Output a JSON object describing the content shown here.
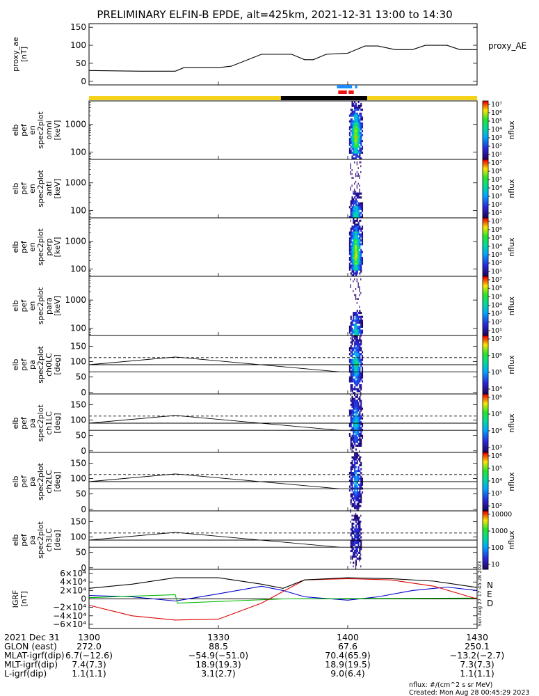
{
  "title": "PRELIMINARY ELFIN-B EPDE, alt=425km, 2021-12-31 13:00 to 14:30",
  "chart_data": {
    "type": "line",
    "time_range": [
      "2021-12-31 13:00",
      "2021-12-31 14:30"
    ],
    "x_ticks": [
      "1300",
      "1330",
      "1400",
      "1430"
    ],
    "panels": [
      {
        "id": "proxy_ae",
        "ylabel": [
          "proxy_ae",
          "[nT]"
        ],
        "legend": "proxy_AE",
        "ylim": [
          -10,
          160
        ],
        "yticks": [
          "0",
          "50",
          "100",
          "150"
        ],
        "series": [
          {
            "name": "proxy_AE",
            "x": [
              0,
              12,
              20,
              22,
              30,
              33,
              40,
              47,
              50,
              52,
              55,
              60,
              64,
              67,
              71,
              75,
              78,
              81,
              83,
              86,
              90
            ],
            "y": [
              30,
              28,
              28,
              38,
              38,
              42,
              75,
              75,
              60,
              60,
              75,
              78,
              98,
              98,
              88,
              88,
              100,
              100,
              100,
              88,
              88
            ]
          }
        ]
      },
      {
        "id": "omni",
        "ylabel": [
          "elb",
          "pef",
          "en",
          "spec2plot",
          "omni",
          "[keV]"
        ],
        "log": true,
        "ylim": [
          55,
          7000
        ],
        "yticks": [
          "100",
          "1000"
        ],
        "cbar": [
          "10⁷",
          "10⁶",
          "10⁵",
          "10⁴",
          "10³",
          "10²",
          "10¹"
        ],
        "cbar_label": "nflux",
        "intensity": [
          0.25,
          0.55,
          0.75,
          0.85,
          0.8,
          0.7,
          0.5,
          0.3,
          0.15
        ]
      },
      {
        "id": "anti",
        "ylabel": [
          "elb",
          "pef",
          "en",
          "spec2plot",
          "anti",
          "[keV]"
        ],
        "log": true,
        "ylim": [
          55,
          7000
        ],
        "yticks": [
          "100",
          "1000"
        ],
        "cbar": [
          "10⁷",
          "10⁶",
          "10⁵",
          "10⁴",
          "10³",
          "10²",
          "10¹"
        ],
        "cbar_label": "nflux",
        "intensity": [
          0.6,
          0.5,
          0.3,
          0.15,
          0.05,
          0.02,
          0.01,
          0.0,
          0.0
        ]
      },
      {
        "id": "perp",
        "ylabel": [
          "elb",
          "pef",
          "en",
          "spec2plot",
          "perp",
          "[keV]"
        ],
        "log": true,
        "ylim": [
          55,
          7000
        ],
        "yticks": [
          "100",
          "1000"
        ],
        "cbar": [
          "10⁷",
          "10⁶",
          "10⁵",
          "10⁴",
          "10³",
          "10²",
          "10¹"
        ],
        "cbar_label": "nflux",
        "intensity": [
          0.2,
          0.55,
          0.75,
          0.85,
          0.8,
          0.7,
          0.5,
          0.3,
          0.1
        ]
      },
      {
        "id": "para",
        "ylabel": [
          "elb",
          "pef",
          "en",
          "spec2plot",
          "para",
          "[keV]"
        ],
        "log": true,
        "ylim": [
          55,
          7000
        ],
        "yticks": [
          "100",
          "1000"
        ],
        "cbar": [
          "10⁷",
          "10⁶",
          "10⁵",
          "10⁴",
          "10³",
          "10²",
          "10¹"
        ],
        "cbar_label": "nflux",
        "intensity": [
          0.55,
          0.45,
          0.3,
          0.15,
          0.05,
          0.02,
          0.0,
          0.0,
          0.0
        ]
      },
      {
        "id": "ch0LC",
        "ylabel": [
          "elb",
          "pef",
          "pa",
          "spec2plot",
          "ch0LC",
          "[deg]"
        ],
        "ylim": [
          -5,
          185
        ],
        "yticks": [
          "0",
          "50",
          "100",
          "150"
        ],
        "cbar": [
          "10⁷",
          "10⁶",
          "10⁵",
          "10⁴"
        ],
        "cbar_label": "nflux",
        "intensity": 0.65
      },
      {
        "id": "ch1LC",
        "ylabel": [
          "elb",
          "pef",
          "pa",
          "spec2plot",
          "ch1LC",
          "[deg]"
        ],
        "ylim": [
          -5,
          185
        ],
        "yticks": [
          "0",
          "50",
          "100",
          "150"
        ],
        "cbar": [
          "10⁶",
          "10⁵",
          "10⁴",
          "10³"
        ],
        "cbar_label": "nflux",
        "intensity": 0.55
      },
      {
        "id": "ch2LC",
        "ylabel": [
          "elb",
          "pef",
          "pa",
          "spec2plot",
          "ch2LC",
          "[deg]"
        ],
        "ylim": [
          -5,
          185
        ],
        "yticks": [
          "0",
          "50",
          "100",
          "150"
        ],
        "cbar": [
          "10⁶",
          "10⁵",
          "10⁴",
          "10³",
          "10²"
        ],
        "cbar_label": "nflux",
        "intensity": 0.45
      },
      {
        "id": "ch3LC",
        "ylabel": [
          "elb",
          "pef",
          "pa",
          "spec2plot",
          "ch3LC",
          "[deg]"
        ],
        "ylim": [
          -5,
          185
        ],
        "yticks": [
          "0",
          "50",
          "100",
          "150"
        ],
        "cbar": [
          "10000",
          "1000",
          "100",
          "10"
        ],
        "cbar_label": "nflux",
        "intensity": 0.25
      },
      {
        "id": "igrf",
        "ylabel": [
          "IGRF",
          "[nT]"
        ],
        "ylim": [
          -70000,
          70000
        ],
        "yticks": [
          "6×10⁴",
          "4×10⁴",
          "2×10⁴",
          "0",
          "−2×10⁴",
          "−4×10⁴",
          "−6×10⁴"
        ],
        "legend": [
          "N",
          "E",
          "D"
        ],
        "series": [
          {
            "name": "N",
            "color": "#0000cc",
            "x": [
              0,
              10,
              20,
              30,
              40,
              45,
              50,
              60,
              67,
              75,
              83,
              90
            ],
            "y": [
              8000,
              5000,
              -5000,
              12000,
              30000,
              20000,
              5000,
              -3000,
              5000,
              20000,
              28000,
              20000
            ]
          },
          {
            "name": "E",
            "color": "#00bb00",
            "x": [
              0,
              20,
              20.5,
              45,
              67,
              90
            ],
            "y": [
              3000,
              10000,
              -10000,
              0,
              1000,
              2000
            ]
          },
          {
            "name": "D",
            "color": "#dd0000",
            "x": [
              0,
              10,
              20,
              30,
              40,
              50,
              60,
              70,
              80,
              90
            ],
            "y": [
              -15000,
              -40000,
              -50000,
              -48000,
              -10000,
              45000,
              48000,
              45000,
              30000,
              0
            ]
          },
          {
            "name": "",
            "color": "#000000",
            "x": [
              0,
              10,
              20,
              30,
              40,
              45,
              50,
              60,
              70,
              80,
              90
            ],
            "y": [
              25000,
              35000,
              50000,
              50000,
              35000,
              25000,
              45000,
              50000,
              48000,
              42000,
              27000
            ]
          }
        ]
      }
    ],
    "pa_lines": {
      "dashed": {
        "x": [
          0,
          90
        ],
        "y": [
          113,
          113
        ]
      },
      "upper": {
        "x": [
          0,
          20,
          58
        ],
        "y": [
          90,
          115,
          67
        ]
      },
      "flat": {
        "x": [
          0,
          90
        ],
        "y": [
          90,
          90
        ]
      },
      "lower": {
        "x": [
          0,
          90
        ],
        "y": [
          67,
          67
        ]
      }
    },
    "coverage": {
      "x_range": [
        45,
        65
      ],
      "black_bar": [
        44.5,
        64.5
      ],
      "blue_marks": [
        [
          57.5,
          61
        ],
        [
          61.7,
          62.2
        ]
      ],
      "red_marks": [
        [
          57.8,
          59.8
        ],
        [
          60.2,
          61.4
        ]
      ]
    }
  },
  "footer": {
    "rows": [
      {
        "label": "2021 Dec 31",
        "values": [
          "1300",
          "1330",
          "1400",
          "1430"
        ]
      },
      {
        "label": "GLON (east)",
        "values": [
          "272.0",
          "88.5",
          "67.6",
          "250.1"
        ]
      },
      {
        "label": "MLAT-igrf(dip)",
        "values": [
          "6.7(−12.6)",
          "−54.9(−51.0)",
          "70.4(65.9)",
          "−13.2(−2.7)"
        ]
      },
      {
        "label": "MLT-igrf(dip)",
        "values": [
          "7.4(7.3)",
          "18.9(19.3)",
          "18.9(19.5)",
          "7.3(7.3)"
        ]
      },
      {
        "label": "L-igrf(dip)",
        "values": [
          "1.1(1.1)",
          "3.1(2.7)",
          "9.0(6.4)",
          "1.1(1.1)"
        ]
      }
    ],
    "units_note": "nflux: #/(cm^2 s sr MeV)",
    "created": "Created: Mon Aug 28 00:45:29 2023",
    "side_stamp": "Sun Aug 27 17:45:28 2023"
  }
}
